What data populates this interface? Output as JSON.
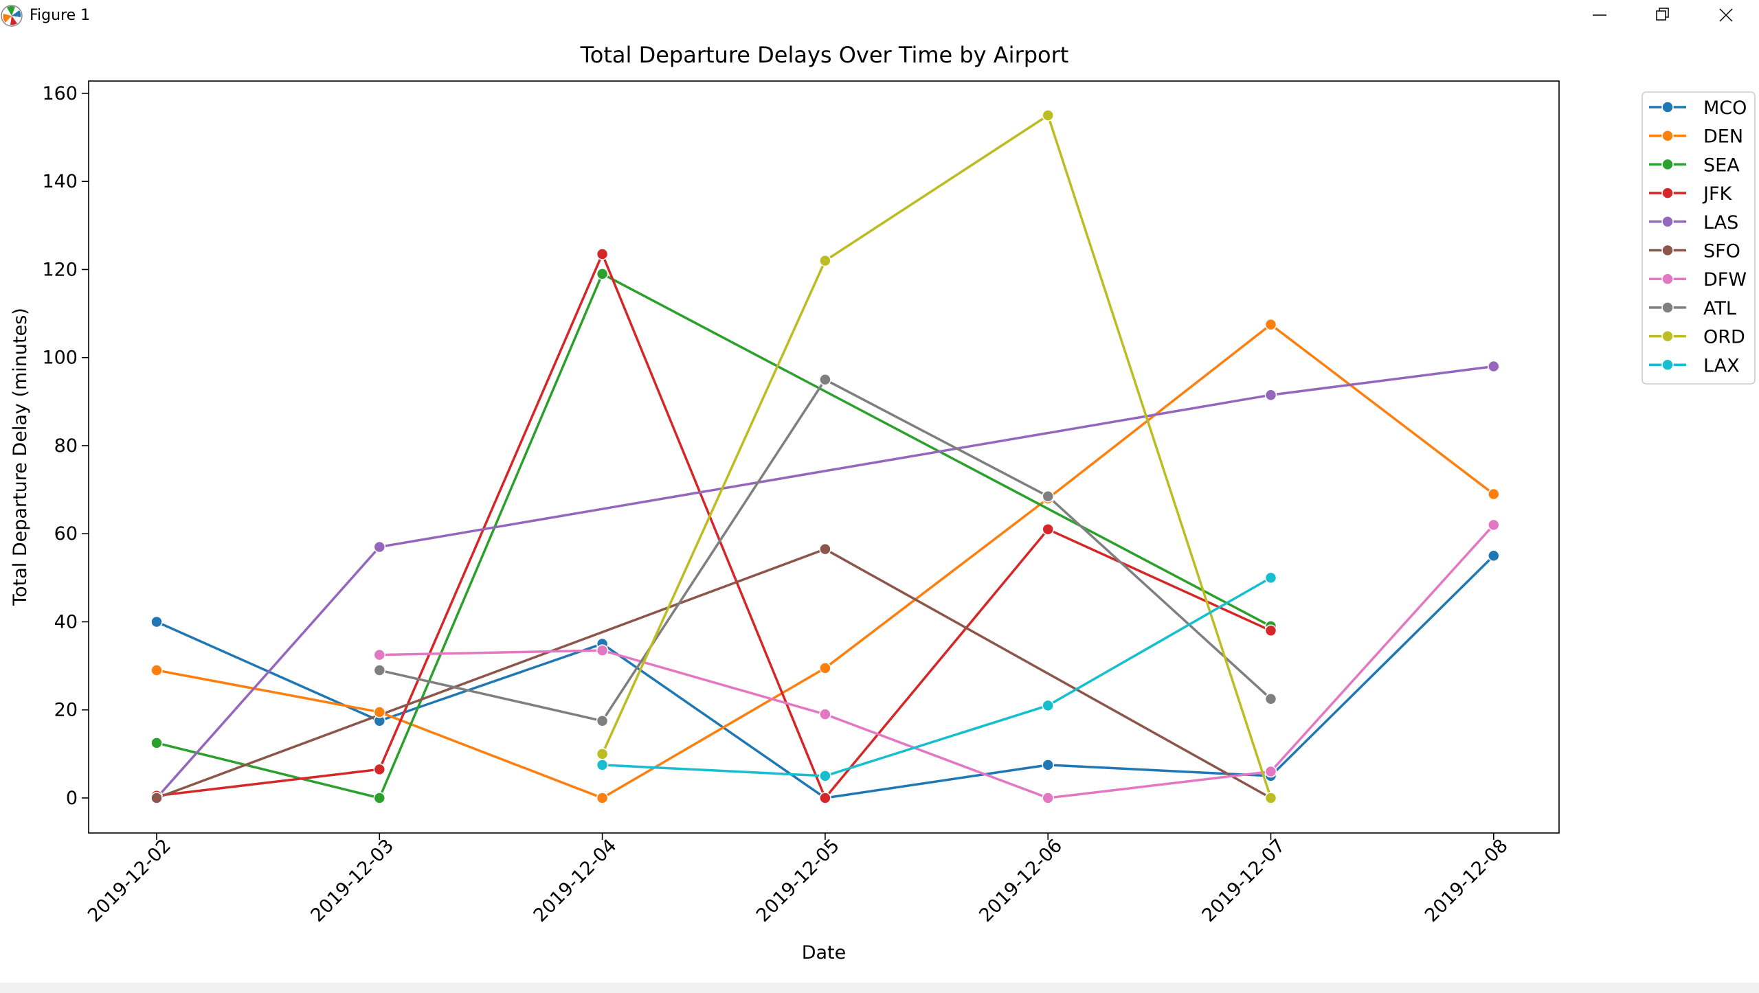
{
  "window": {
    "title": "Figure 1"
  },
  "colors": {
    "axes_frame": "#000000",
    "background": "#ffffff"
  },
  "icons": {
    "app": "matplotlib-logo-icon",
    "minimize": "minimize-icon",
    "maximize": "restore-icon",
    "close": "close-icon"
  },
  "chart_data": {
    "type": "line",
    "title": "Total Departure Delays Over Time by Airport",
    "xlabel": "Date",
    "ylabel": "Total Departure Delay (minutes)",
    "categories": [
      "2019-12-02",
      "2019-12-03",
      "2019-12-04",
      "2019-12-05",
      "2019-12-06",
      "2019-12-07",
      "2019-12-08"
    ],
    "ylim": [
      -8,
      163
    ],
    "yticks": [
      0,
      20,
      40,
      60,
      80,
      100,
      120,
      140,
      160
    ],
    "grid": false,
    "legend_position": "outside-top-right",
    "series": [
      {
        "name": "MCO",
        "color": "#1f77b4",
        "values": [
          40,
          17.5,
          35,
          0,
          7.5,
          5,
          55
        ]
      },
      {
        "name": "DEN",
        "color": "#ff7f0e",
        "values": [
          29,
          19.5,
          0,
          29.5,
          68,
          107.5,
          69
        ]
      },
      {
        "name": "SEA",
        "color": "#2ca02c",
        "values": [
          12.5,
          0,
          119,
          null,
          null,
          39,
          null
        ]
      },
      {
        "name": "JFK",
        "color": "#d62728",
        "values": [
          0.5,
          6.5,
          123.5,
          0,
          61,
          38,
          null
        ]
      },
      {
        "name": "LAS",
        "color": "#9467bd",
        "values": [
          0,
          57,
          null,
          null,
          null,
          91.5,
          98
        ]
      },
      {
        "name": "SFO",
        "color": "#8c564b",
        "values": [
          0,
          null,
          null,
          56.5,
          null,
          0,
          null
        ]
      },
      {
        "name": "DFW",
        "color": "#e377c2",
        "values": [
          null,
          32.5,
          33.5,
          19,
          0,
          6,
          62
        ]
      },
      {
        "name": "ATL",
        "color": "#7f7f7f",
        "values": [
          null,
          29,
          17.5,
          95,
          68.5,
          22.5,
          null
        ]
      },
      {
        "name": "ORD",
        "color": "#bcbd22",
        "values": [
          null,
          null,
          10,
          122,
          155,
          0,
          null
        ]
      },
      {
        "name": "LAX",
        "color": "#17becf",
        "values": [
          null,
          null,
          7.5,
          5,
          21,
          50,
          null
        ]
      }
    ]
  }
}
